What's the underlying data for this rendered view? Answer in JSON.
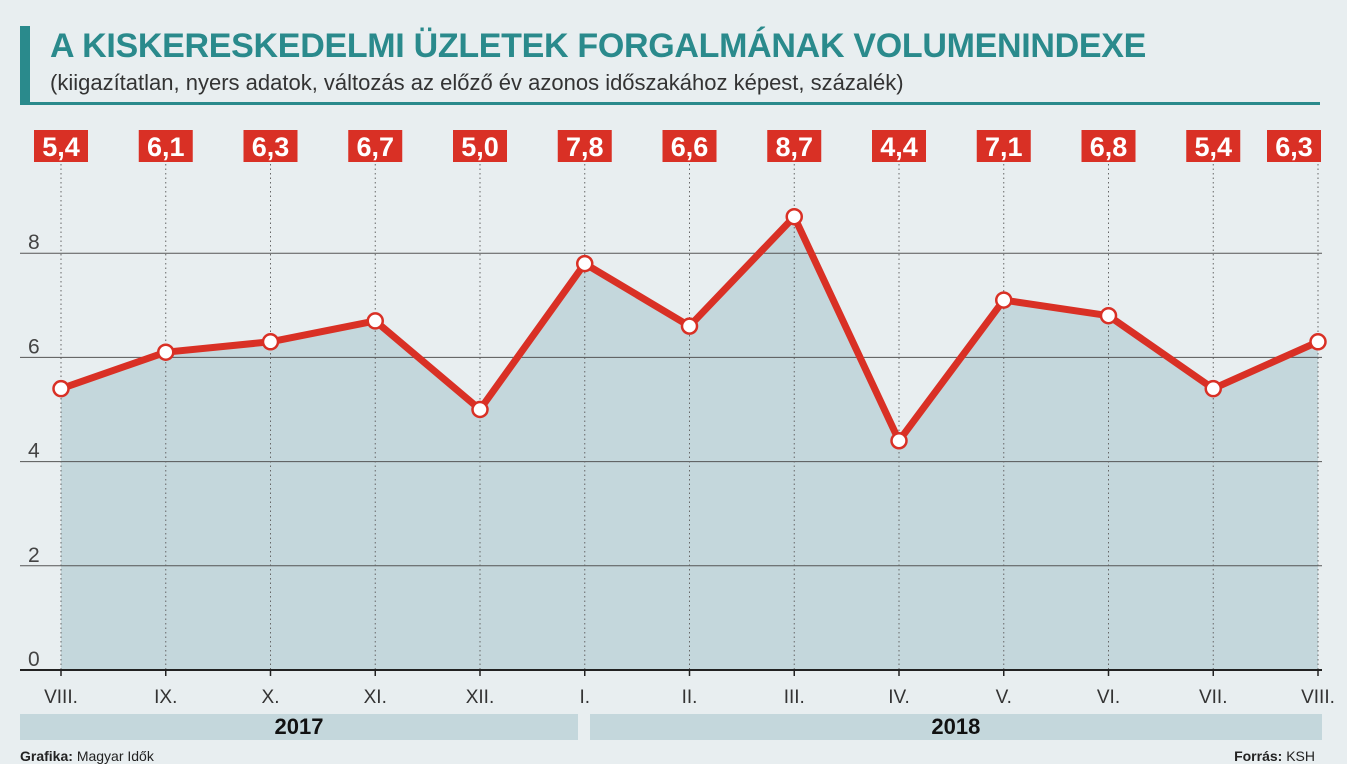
{
  "header": {
    "title": "A KISKERESKEDELMI ÜZLETEK FORGALMÁNAK VOLUMENINDEXE",
    "subtitle": "(kiigazítatlan, nyers adatok, változás az előző év azonos időszakához képest, százalék)"
  },
  "chart_data": {
    "type": "area",
    "categories": [
      "VIII.",
      "IX.",
      "X.",
      "XI.",
      "XII.",
      "I.",
      "II.",
      "III.",
      "IV.",
      "V.",
      "VI.",
      "VII.",
      "VIII."
    ],
    "values": [
      5.4,
      6.1,
      6.3,
      6.7,
      5.0,
      7.8,
      6.6,
      8.7,
      4.4,
      7.1,
      6.8,
      5.4,
      6.3
    ],
    "value_labels": [
      "5,4",
      "6,1",
      "6,3",
      "6,7",
      "5,0",
      "7,8",
      "6,6",
      "8,7",
      "4,4",
      "7,1",
      "6,8",
      "5,4",
      "6,3"
    ],
    "ylim": [
      0,
      8
    ],
    "yticks": [
      0,
      2,
      4,
      6,
      8
    ],
    "grid": true,
    "year_groups": [
      {
        "label": "2017",
        "start_index": 0,
        "end_index": 4
      },
      {
        "label": "2018",
        "start_index": 5,
        "end_index": 12
      }
    ],
    "colors": {
      "line": "#d93025",
      "area": "#c4d7dc",
      "label_bg": "#d93025",
      "label_text": "#ffffff",
      "grid": "#555555"
    }
  },
  "footer": {
    "credit_label": "Grafika:",
    "credit_value": "Magyar Idők",
    "source_label": "Forrás:",
    "source_value": "KSH"
  }
}
